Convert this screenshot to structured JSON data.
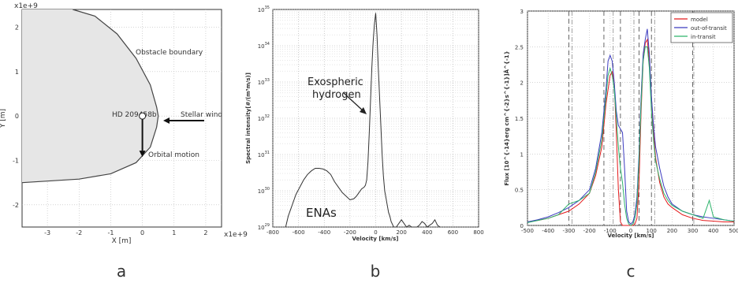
{
  "panels": [
    {
      "label": "a"
    },
    {
      "label": "b"
    },
    {
      "label": "c"
    }
  ],
  "chart_data": [
    {
      "type": "scatter",
      "panel": "a",
      "scale_note_x": "x1e+9",
      "scale_note_y": "x1e+9",
      "xlabel": "X [m]",
      "ylabel": "Y [m]",
      "xlim": [
        -3.8,
        2.5
      ],
      "ylim": [
        -2.5,
        2.4
      ],
      "xticks": [
        -3,
        -2,
        -1,
        0,
        1,
        2
      ],
      "yticks": [
        -2,
        -1,
        0,
        1,
        2
      ],
      "boundary": {
        "name": "Obstacle boundary",
        "points": [
          [
            -2.2,
            2.4
          ],
          [
            -1.5,
            2.25
          ],
          [
            -0.8,
            1.85
          ],
          [
            -0.2,
            1.3
          ],
          [
            0.25,
            0.7
          ],
          [
            0.45,
            0.2
          ],
          [
            0.5,
            0.0
          ],
          [
            0.45,
            -0.25
          ],
          [
            0.25,
            -0.7
          ],
          [
            -0.2,
            -1.05
          ],
          [
            -1.0,
            -1.3
          ],
          [
            -2.0,
            -1.42
          ],
          [
            -3.8,
            -1.5
          ]
        ]
      },
      "planet": {
        "name": "HD 209458b",
        "x": 0,
        "y": 0
      },
      "annotations": [
        "Obstacle boundary",
        "Stellar wind",
        "Orbital motion",
        "HD 209458b"
      ],
      "grid": true
    },
    {
      "type": "line",
      "panel": "b",
      "xlabel": "Velocity [km/s]",
      "ylabel": "Spectral intensity[#/(m³m/s)]",
      "xlim": [
        -800,
        800
      ],
      "ylim_exp": [
        29,
        35
      ],
      "log_y": true,
      "xticks": [
        -800,
        -600,
        -400,
        -200,
        0,
        200,
        400,
        600,
        800
      ],
      "ytick_exps": [
        29,
        30,
        31,
        32,
        33,
        34,
        35
      ],
      "ytick_base": "10",
      "annotations": [
        "Exospheric hydrogen",
        "ENAs"
      ],
      "series": [
        {
          "x": [
            -700,
            -680,
            -650,
            -620,
            -590,
            -560,
            -530,
            -500,
            -470,
            -440,
            -410,
            -380,
            -350,
            -320,
            -290,
            -260,
            -230,
            -200,
            -170,
            -150,
            -130,
            -110,
            -90,
            -80,
            -70,
            -60,
            -50,
            -40,
            -30,
            -20,
            -10,
            0,
            10,
            20,
            30,
            40,
            50,
            60,
            70,
            80,
            90,
            100,
            110,
            120,
            140,
            160,
            180,
            200,
            220,
            240,
            260,
            280,
            300,
            320,
            340,
            360,
            380,
            400,
            420,
            440,
            460,
            480,
            500
          ],
          "log_y": [
            29.0,
            29.3,
            29.6,
            29.9,
            30.1,
            30.3,
            30.45,
            30.55,
            30.62,
            30.62,
            30.6,
            30.55,
            30.45,
            30.25,
            30.1,
            29.95,
            29.85,
            29.75,
            29.78,
            29.85,
            29.95,
            30.05,
            30.1,
            30.15,
            30.3,
            30.8,
            31.6,
            32.5,
            33.4,
            34.1,
            34.6,
            34.9,
            34.3,
            33.4,
            32.6,
            31.8,
            31.0,
            30.4,
            30.0,
            29.8,
            29.6,
            29.4,
            29.3,
            29.15,
            29.0,
            29.0,
            29.1,
            29.2,
            29.1,
            29.0,
            29.05,
            29.0,
            29.0,
            29.0,
            29.05,
            29.15,
            29.1,
            29.0,
            29.05,
            29.1,
            29.2,
            29.05,
            29.0
          ]
        }
      ],
      "grid": true
    },
    {
      "type": "line",
      "panel": "c",
      "xlabel": "Velocity [km/s]",
      "ylabel": "Flux [10^{-14}erg cm^{-2}s^{-1}]Å^{-1}",
      "xlim": [
        -500,
        500
      ],
      "ylim": [
        0,
        3
      ],
      "xticks": [
        -500,
        -400,
        -300,
        -200,
        -100,
        0,
        100,
        200,
        300,
        400,
        500
      ],
      "yticks": [
        0,
        0.5,
        1,
        1.5,
        2,
        2.5,
        3
      ],
      "vlines_dashed": [
        -300,
        -130,
        -50,
        40,
        100,
        300
      ],
      "vlines_dashdot": [
        -300,
        -100,
        0,
        100,
        290
      ],
      "grid": true,
      "legend_position": "top-right",
      "series": [
        {
          "name": "model",
          "color": "#e41a1c",
          "x": [
            -500,
            -450,
            -400,
            -350,
            -300,
            -250,
            -200,
            -170,
            -140,
            -120,
            -100,
            -90,
            -80,
            -70,
            -60,
            -50,
            -40,
            -30,
            -20,
            -10,
            0,
            10,
            20,
            30,
            40,
            50,
            60,
            70,
            80,
            90,
            100,
            110,
            120,
            140,
            160,
            180,
            200,
            250,
            300,
            350,
            400,
            450,
            500
          ],
          "y": [
            0.05,
            0.07,
            0.1,
            0.15,
            0.2,
            0.3,
            0.45,
            0.7,
            1.1,
            1.7,
            2.1,
            2.15,
            2.0,
            1.3,
            0.5,
            0.05,
            0.0,
            0.0,
            0.0,
            0.0,
            0.0,
            0.0,
            0.02,
            0.1,
            0.6,
            1.6,
            2.3,
            2.55,
            2.6,
            2.3,
            1.8,
            1.3,
            0.95,
            0.6,
            0.4,
            0.3,
            0.25,
            0.15,
            0.1,
            0.07,
            0.06,
            0.05,
            0.05
          ]
        },
        {
          "name": "out-of-transit",
          "color": "#3b3bbf",
          "x": [
            -500,
            -450,
            -400,
            -350,
            -300,
            -250,
            -200,
            -170,
            -140,
            -120,
            -110,
            -100,
            -90,
            -80,
            -70,
            -60,
            -50,
            -40,
            -30,
            -20,
            -10,
            0,
            10,
            20,
            30,
            40,
            50,
            60,
            70,
            80,
            90,
            100,
            110,
            120,
            140,
            160,
            180,
            200,
            250,
            300,
            350,
            400,
            450,
            500
          ],
          "y": [
            0.05,
            0.08,
            0.12,
            0.18,
            0.25,
            0.35,
            0.5,
            0.8,
            1.3,
            1.9,
            2.3,
            2.38,
            2.3,
            2.0,
            1.6,
            1.4,
            1.35,
            1.3,
            0.8,
            0.2,
            0.05,
            0.02,
            0.05,
            0.15,
            0.4,
            1.0,
            1.8,
            2.4,
            2.6,
            2.75,
            2.4,
            1.8,
            1.4,
            1.1,
            0.8,
            0.55,
            0.4,
            0.3,
            0.2,
            0.15,
            0.12,
            0.1,
            0.08,
            0.06
          ]
        },
        {
          "name": "in-transit",
          "color": "#2db36b",
          "x": [
            -500,
            -450,
            -400,
            -350,
            -300,
            -250,
            -200,
            -170,
            -140,
            -120,
            -110,
            -100,
            -90,
            -80,
            -70,
            -60,
            -50,
            -40,
            -30,
            -20,
            -10,
            0,
            10,
            20,
            30,
            40,
            50,
            60,
            70,
            80,
            90,
            100,
            110,
            120,
            140,
            160,
            180,
            200,
            250,
            300,
            350,
            380,
            400,
            450,
            500
          ],
          "y": [
            0.04,
            0.07,
            0.1,
            0.15,
            0.3,
            0.35,
            0.45,
            0.75,
            1.2,
            1.8,
            2.1,
            2.2,
            2.1,
            1.9,
            1.5,
            1.1,
            0.8,
            0.6,
            0.3,
            0.1,
            0.02,
            0.0,
            0.02,
            0.1,
            0.3,
            0.9,
            1.7,
            2.3,
            2.5,
            2.5,
            2.2,
            1.6,
            1.2,
            0.9,
            0.65,
            0.45,
            0.35,
            0.28,
            0.2,
            0.15,
            0.1,
            0.35,
            0.12,
            0.08,
            0.06
          ]
        }
      ]
    }
  ]
}
